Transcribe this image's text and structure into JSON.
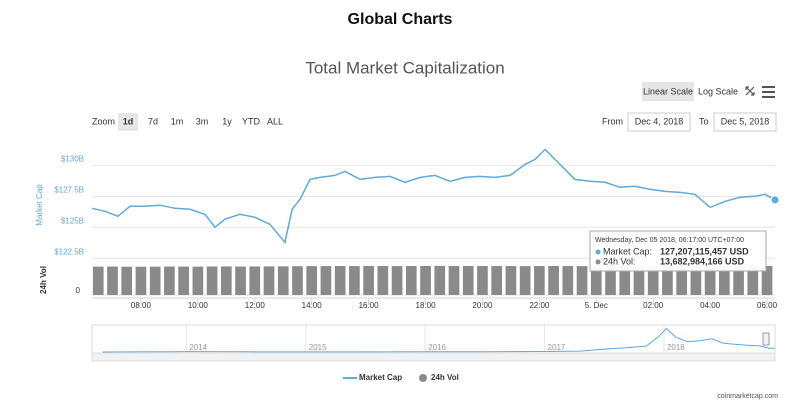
{
  "header": {
    "title": "Global Charts"
  },
  "controls": {
    "scale_buttons": [
      "Linear Scale",
      "Log Scale"
    ],
    "zoom_label": "Zoom",
    "zoom_buttons": [
      "1d",
      "7d",
      "1m",
      "3m",
      "1y",
      "YTD",
      "ALL"
    ],
    "from_label": "From",
    "from_date": "Dec 4, 2018",
    "to_label": "To",
    "to_date": "Dec 5, 2018"
  },
  "chart_data": [
    {
      "type": "line",
      "title": "Total Market Capitalization",
      "y_label": "Market Cap",
      "x": [
        6.28,
        6.74,
        7.19,
        7.62,
        8.14,
        8.67,
        9.2,
        9.72,
        10.25,
        10.6,
        10.95,
        11.48,
        12.01,
        12.53,
        13.06,
        13.31,
        13.59,
        13.94,
        14.29,
        14.82,
        15.17,
        15.7,
        16.22,
        16.75,
        17.28,
        17.81,
        18.33,
        18.86,
        19.39,
        19.91,
        20.44,
        20.97,
        21.5,
        21.85,
        22.2,
        22.55,
        22.9,
        23.25,
        23.78,
        24.31,
        24.83,
        25.36,
        25.89,
        26.41,
        26.94,
        27.47,
        28.0,
        28.53,
        29.05,
        29.58,
        29.93,
        30.28
      ],
      "series": [
        {
          "name": "Market Cap",
          "color": "#5ea9dd",
          "values": [
            126.53,
            126.29,
            125.89,
            126.7,
            126.7,
            126.78,
            126.53,
            126.45,
            126.05,
            125.0,
            125.65,
            126.05,
            125.81,
            125.24,
            123.79,
            126.45,
            127.26,
            128.87,
            129.03,
            129.19,
            129.52,
            128.87,
            129.03,
            129.11,
            128.63,
            129.03,
            129.19,
            128.71,
            129.03,
            129.11,
            129.03,
            129.19,
            130.08,
            130.48,
            131.29,
            130.48,
            129.68,
            128.87,
            128.71,
            128.63,
            128.23,
            128.31,
            128.07,
            127.9,
            127.82,
            127.66,
            126.61,
            127.1,
            127.42,
            127.5,
            127.66,
            127.21
          ]
        }
      ],
      "xlim": [
        6.28,
        30.28
      ],
      "xticks": [
        {
          "value": 8,
          "label": "08:00"
        },
        {
          "value": 10,
          "label": "10:00"
        },
        {
          "value": 12,
          "label": "12:00"
        },
        {
          "value": 14,
          "label": "14:00"
        },
        {
          "value": 16,
          "label": "16:00"
        },
        {
          "value": 18,
          "label": "18:00"
        },
        {
          "value": 20,
          "label": "20:00"
        },
        {
          "value": 22,
          "label": "22:00"
        },
        {
          "value": 24,
          "label": "5. Dec"
        },
        {
          "value": 26,
          "label": "02:00"
        },
        {
          "value": 28,
          "label": "04:00"
        },
        {
          "value": 30,
          "label": "06:00"
        }
      ],
      "ylim": [
        122.2,
        131.4
      ],
      "yticks": [
        {
          "value": 122.5,
          "label": "$122.5B"
        },
        {
          "value": 125,
          "label": "$125B"
        },
        {
          "value": 127.5,
          "label": "$127.5B"
        },
        {
          "value": 130,
          "label": "$130B"
        }
      ],
      "grid": true,
      "tooltip": {
        "title": "Wednesday, Dec 05 2018, 06:17:00 UTC+07:00",
        "items": [
          {
            "label": "Market Cap:",
            "value_label": "127,207,115,457 USD"
          },
          {
            "label": "24h Vol:",
            "value_label": "13,682,984,166 USD"
          }
        ]
      }
    },
    {
      "type": "bar",
      "y_label": "24h Vol",
      "x": [
        6.5,
        7,
        7.5,
        8,
        8.5,
        9,
        9.5,
        10,
        10.5,
        11,
        11.5,
        12,
        12.5,
        13,
        13.5,
        14,
        14.5,
        15,
        15.5,
        16,
        16.5,
        17,
        17.5,
        18,
        18.5,
        19,
        19.5,
        20,
        20.5,
        21,
        21.5,
        22,
        22.5,
        23,
        23.5,
        24,
        24.5,
        25,
        25.5,
        26,
        26.5,
        27,
        27.5,
        28,
        28.5,
        29,
        29.5,
        30
      ],
      "series": [
        {
          "name": "24h Vol",
          "color": "#8a8a8a",
          "values": [
            13.35,
            13.38,
            13.3,
            13.33,
            13.36,
            13.4,
            13.37,
            13.35,
            13.42,
            13.45,
            13.4,
            13.44,
            13.48,
            13.5,
            13.55,
            13.6,
            13.62,
            13.65,
            13.63,
            13.66,
            13.64,
            13.62,
            13.65,
            13.67,
            13.7,
            13.66,
            13.64,
            13.68,
            13.65,
            13.62,
            13.6,
            13.63,
            13.66,
            13.64,
            13.61,
            13.63,
            13.65,
            13.67,
            13.64,
            13.62,
            13.66,
            13.68,
            13.65,
            13.63,
            13.66,
            13.69,
            13.67,
            13.68
          ]
        }
      ],
      "xlim": [
        6.28,
        30.28
      ],
      "ylim": [
        0,
        14.6
      ],
      "yticks": [
        0
      ]
    },
    {
      "type": "area",
      "color": "#5ea9dd",
      "x": [
        2013.3,
        2013.9,
        2014.0,
        2014.5,
        2015.0,
        2015.5,
        2016.0,
        2016.5,
        2017.0,
        2017.3,
        2017.5,
        2017.7,
        2017.85,
        2017.95,
        2018.02,
        2018.1,
        2018.2,
        2018.3,
        2018.4,
        2018.5,
        2018.6,
        2018.7,
        2018.8,
        2018.88,
        2018.93
      ],
      "values": [
        1.5,
        10,
        12,
        8,
        5,
        4,
        7,
        10,
        18,
        30,
        100,
        150,
        200,
        500,
        800,
        500,
        350,
        380,
        450,
        300,
        260,
        230,
        210,
        130,
        127
      ],
      "xlim": [
        2013.21,
        2018.93
      ],
      "xticks": [
        2014,
        2015,
        2016,
        2017,
        2018
      ],
      "ylim": [
        0,
        850
      ]
    }
  ],
  "footer": "coinmarketcap.com"
}
